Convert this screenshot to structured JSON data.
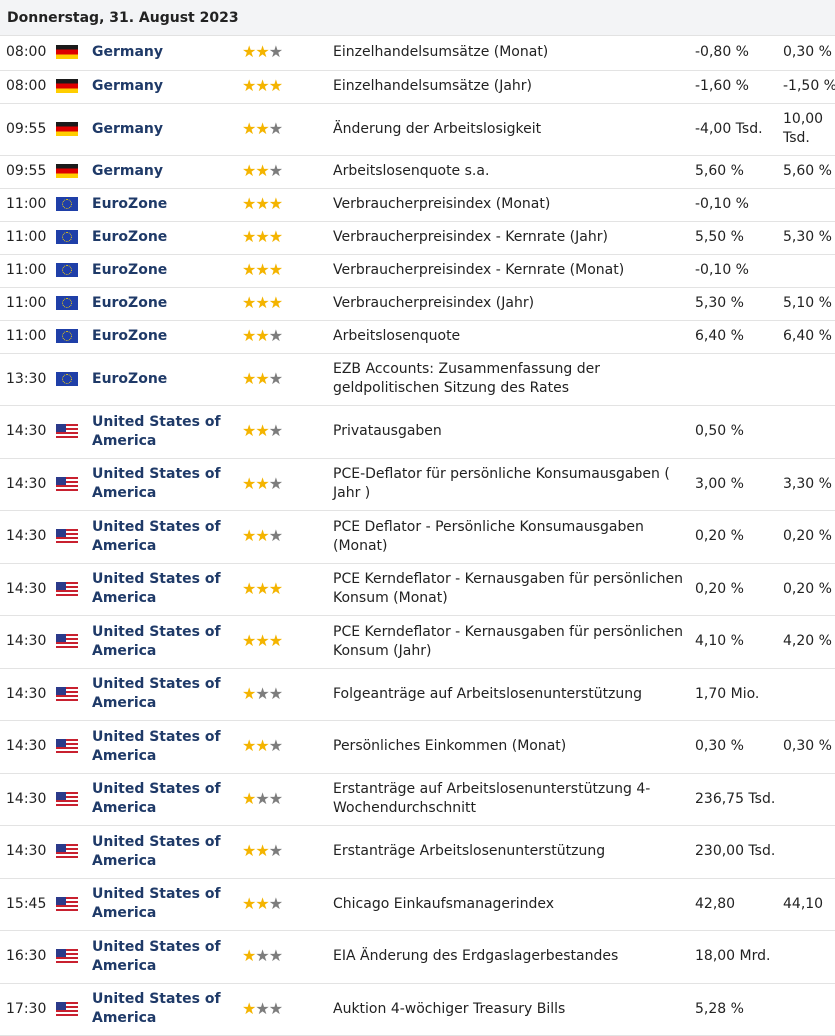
{
  "header": {
    "date": "Donnerstag, 31. August 2023"
  },
  "colors": {
    "star_on": "#f4b400",
    "star_off": "#7d7d7d",
    "country": "#1f3a68"
  },
  "rows": [
    {
      "time": "08:00",
      "flag": "de",
      "country": "Germany",
      "stars": 2,
      "event": "Einzelhandelsumsätze (Monat)",
      "actual": "-0,80 %",
      "previous": "0,30 %",
      "h": 34
    },
    {
      "time": "08:00",
      "flag": "de",
      "country": "Germany",
      "stars": 3,
      "event": "Einzelhandelsumsätze (Jahr)",
      "actual": "-1,60 %",
      "previous": "-1,50 %",
      "h": 33
    },
    {
      "time": "09:55",
      "flag": "de",
      "country": "Germany",
      "stars": 2,
      "event": "Änderung der Arbeitslosigkeit",
      "actual": "-4,00 Tsd.",
      "previous": "10,00 Tsd.",
      "h": 52
    },
    {
      "time": "09:55",
      "flag": "de",
      "country": "Germany",
      "stars": 2,
      "event": "Arbeitslosenquote s.a.",
      "actual": "5,60 %",
      "previous": "5,60 %",
      "h": 33
    },
    {
      "time": "11:00",
      "flag": "eu",
      "country": "EuroZone",
      "stars": 3,
      "event": "Verbraucherpreisindex (Monat)",
      "actual": "-0,10 %",
      "previous": "",
      "h": 33
    },
    {
      "time": "11:00",
      "flag": "eu",
      "country": "EuroZone",
      "stars": 3,
      "event": "Verbraucherpreisindex - Kernrate (Jahr)",
      "actual": "5,50 %",
      "previous": "5,30 %",
      "h": 33
    },
    {
      "time": "11:00",
      "flag": "eu",
      "country": "EuroZone",
      "stars": 3,
      "event": "Verbraucherpreisindex - Kernrate (Monat)",
      "actual": "-0,10 %",
      "previous": "",
      "h": 33
    },
    {
      "time": "11:00",
      "flag": "eu",
      "country": "EuroZone",
      "stars": 3,
      "event": "Verbraucherpreisindex (Jahr)",
      "actual": "5,30 %",
      "previous": "5,10 %",
      "h": 33
    },
    {
      "time": "11:00",
      "flag": "eu",
      "country": "EuroZone",
      "stars": 2,
      "event": "Arbeitslosenquote",
      "actual": "6,40 %",
      "previous": "6,40 %",
      "h": 33
    },
    {
      "time": "13:30",
      "flag": "eu",
      "country": "EuroZone",
      "stars": 2,
      "event": "EZB Accounts: Zusammenfassung der geldpolitischen Sitzung des Rates",
      "actual": "",
      "previous": "",
      "h": 52
    },
    {
      "time": "14:30",
      "flag": "us",
      "country": "United States of America",
      "stars": 2,
      "event": "Privatausgaben",
      "actual": "0,50 %",
      "previous": "",
      "h": 53
    },
    {
      "time": "14:30",
      "flag": "us",
      "country": "United States of America",
      "stars": 2,
      "event": "PCE-Deflator für persönliche Konsumausgaben ( Jahr )",
      "actual": "3,00 %",
      "previous": "3,30 %",
      "h": 52
    },
    {
      "time": "14:30",
      "flag": "us",
      "country": "United States of America",
      "stars": 2,
      "event": "PCE Deflator - Persönliche Konsumausgaben (Monat)",
      "actual": "0,20 %",
      "previous": "0,20 %",
      "h": 53
    },
    {
      "time": "14:30",
      "flag": "us",
      "country": "United States of America",
      "stars": 3,
      "event": "PCE Kerndeflator - Kernausgaben für persönlichen Konsum (Monat)",
      "actual": "0,20 %",
      "previous": "0,20 %",
      "h": 52
    },
    {
      "time": "14:30",
      "flag": "us",
      "country": "United States of America",
      "stars": 3,
      "event": "PCE Kerndeflator - Kernausgaben für persönlichen Konsum (Jahr)",
      "actual": "4,10 %",
      "previous": "4,20 %",
      "h": 53
    },
    {
      "time": "14:30",
      "flag": "us",
      "country": "United States of America",
      "stars": 1,
      "event": "Folgeanträge auf Arbeitslosenunterstützung",
      "actual": "1,70 Mio.",
      "previous": "",
      "h": 52
    },
    {
      "time": "14:30",
      "flag": "us",
      "country": "United States of America",
      "stars": 2,
      "event": "Persönliches Einkommen (Monat)",
      "actual": "0,30 %",
      "previous": "0,30 %",
      "h": 53
    },
    {
      "time": "14:30",
      "flag": "us",
      "country": "United States of America",
      "stars": 1,
      "event": "Erstanträge auf Arbeitslosenunterstützung 4-Wochendurchschnitt",
      "actual": "236,75 Tsd.",
      "previous": "",
      "h": 52
    },
    {
      "time": "14:30",
      "flag": "us",
      "country": "United States of America",
      "stars": 2,
      "event": "Erstanträge Arbeitslosenunterstützung",
      "actual": "230,00 Tsd.",
      "previous": "",
      "h": 53
    },
    {
      "time": "15:45",
      "flag": "us",
      "country": "United States of America",
      "stars": 2,
      "event": "Chicago Einkaufsmanagerindex",
      "actual": "42,80",
      "previous": "44,10",
      "h": 52
    },
    {
      "time": "16:30",
      "flag": "us",
      "country": "United States of America",
      "stars": 1,
      "event": "EIA Änderung des Erdgaslagerbestandes",
      "actual": "18,00 Mrd.",
      "previous": "",
      "h": 53
    },
    {
      "time": "17:30",
      "flag": "us",
      "country": "United States of America",
      "stars": 1,
      "event": "Auktion 4-wöchiger Treasury Bills",
      "actual": "5,28 %",
      "previous": "",
      "h": 52
    }
  ]
}
